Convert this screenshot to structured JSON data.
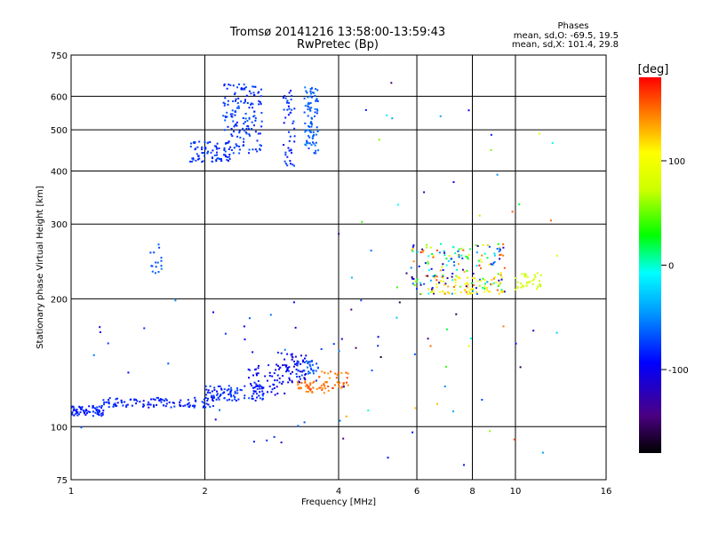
{
  "chart_data": {
    "type": "scatter",
    "title": "Tromsø 20141216 13:58:00-13:59:43",
    "subtitle": "RwPretec (Bp)",
    "xlabel": "Frequency [MHz]",
    "ylabel": "Stationary phase Virtual Height [km]",
    "x_scale": "log",
    "y_scale": "log",
    "xlim": [
      1,
      16
    ],
    "ylim": [
      75,
      750
    ],
    "x_ticks": [
      1,
      2,
      4,
      6,
      8,
      10,
      16
    ],
    "y_ticks": [
      75,
      100,
      200,
      300,
      400,
      500,
      600,
      750
    ],
    "grid": true,
    "phases": {
      "heading": "Phases",
      "line1": "mean, sd,O: -69.5, 19.5",
      "line2": "mean, sd,X: 101.4, 29.8"
    },
    "colorbar": {
      "label": "[deg]",
      "range": [
        -180,
        180
      ],
      "ticks": [
        100,
        0,
        -100
      ]
    },
    "clusters": [
      {
        "f": [
          1.0,
          1.18
        ],
        "h": [
          106,
          112
        ],
        "phase": [
          -95,
          -75
        ],
        "n": 70
      },
      {
        "f": [
          1.18,
          2.1
        ],
        "h": [
          111,
          117
        ],
        "phase": [
          -95,
          -75
        ],
        "n": 110
      },
      {
        "f": [
          2.0,
          2.8
        ],
        "h": [
          115,
          125
        ],
        "phase": [
          -95,
          -70
        ],
        "n": 90
      },
      {
        "f": [
          2.5,
          3.1
        ],
        "h": [
          118,
          140
        ],
        "phase": [
          -110,
          -80
        ],
        "n": 60
      },
      {
        "f": [
          2.9,
          3.4
        ],
        "h": [
          125,
          150
        ],
        "phase": [
          -120,
          -80
        ],
        "n": 55
      },
      {
        "f": [
          3.2,
          3.6
        ],
        "h": [
          128,
          143
        ],
        "phase": [
          -80,
          -60
        ],
        "n": 35
      },
      {
        "f": [
          3.2,
          3.8
        ],
        "h": [
          120,
          128
        ],
        "phase": [
          130,
          160
        ],
        "n": 40
      },
      {
        "f": [
          3.6,
          4.2
        ],
        "h": [
          123,
          135
        ],
        "phase": [
          130,
          160
        ],
        "n": 35
      },
      {
        "f": [
          1.85,
          2.3
        ],
        "h": [
          420,
          470
        ],
        "phase": [
          -90,
          -70
        ],
        "n": 80
      },
      {
        "f": [
          2.2,
          2.7
        ],
        "h": [
          440,
          640
        ],
        "phase": [
          -90,
          -65
        ],
        "n": 150
      },
      {
        "f": [
          3.0,
          3.2
        ],
        "h": [
          410,
          620
        ],
        "phase": [
          -95,
          -70
        ],
        "n": 45
      },
      {
        "f": [
          3.35,
          3.6
        ],
        "h": [
          440,
          630
        ],
        "phase": [
          -75,
          -55
        ],
        "n": 90
      },
      {
        "f": [
          1.5,
          1.6
        ],
        "h": [
          230,
          270
        ],
        "phase": [
          -75,
          -55
        ],
        "n": 16
      },
      {
        "f": [
          5.8,
          9.5
        ],
        "h": [
          205,
          270
        ],
        "phase": [
          -150,
          170
        ],
        "n": 180
      },
      {
        "f": [
          6.5,
          9.5
        ],
        "h": [
          205,
          225
        ],
        "phase": [
          90,
          115
        ],
        "n": 60
      },
      {
        "f": [
          10.0,
          11.5
        ],
        "h": [
          210,
          230
        ],
        "phase": [
          65,
          90
        ],
        "n": 35
      },
      {
        "f": [
          1.0,
          5.0
        ],
        "h": [
          90,
          200
        ],
        "phase": [
          -120,
          -50
        ],
        "n": 40
      },
      {
        "f": [
          4.0,
          14.0
        ],
        "h": [
          80,
          660
        ],
        "phase": [
          -170,
          170
        ],
        "n": 60
      }
    ]
  }
}
